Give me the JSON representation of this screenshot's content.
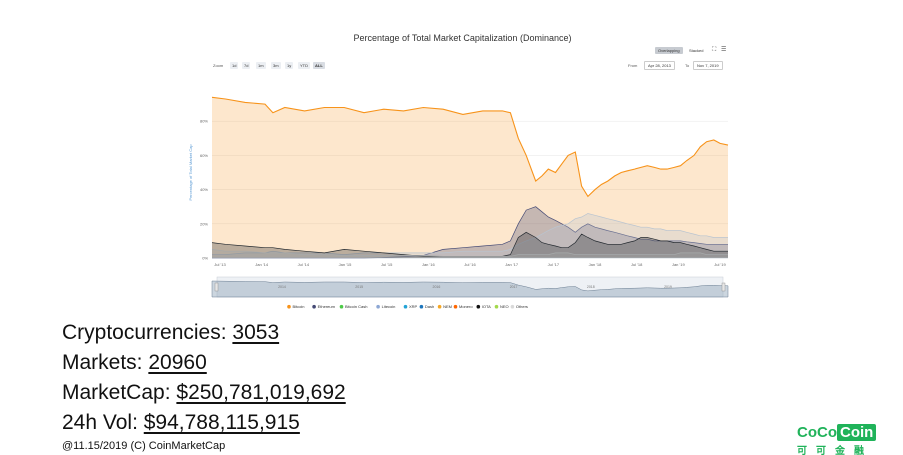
{
  "chart_data": {
    "type": "area",
    "title": "Percentage of Total Market Capitalization (Dominance)",
    "ylabel": "Percentage of Total Market Cap",
    "ylim": [
      0,
      100
    ],
    "y_ticks": [
      "0%",
      "20%",
      "40%",
      "60%",
      "80%"
    ],
    "x_ticks": [
      "Jul '13",
      "Jan '14",
      "Jul '14",
      "Jan '15",
      "Jul '15",
      "Jan '16",
      "Jul '16",
      "Jan '17",
      "Jul '17",
      "Jan '18",
      "Jul '18",
      "Jan '19",
      "Jul '19"
    ],
    "navigator_ticks": [
      "2014",
      "2015",
      "2016",
      "2017",
      "2018",
      "2019"
    ],
    "legend_position": "bottom",
    "controls": {
      "zoom_label": "Zoom",
      "zoom_buttons": [
        "1d",
        "7d",
        "1m",
        "3m",
        "1y",
        "YTD",
        "ALL"
      ],
      "from_label": "From",
      "from_date": "Apr 28, 2013",
      "to_label": "To",
      "to_date": "Nov 7, 2019",
      "overlapping_label": "Overlapping",
      "stacked_label": "Stacked"
    },
    "x": [
      2013.33,
      2013.5,
      2013.75,
      2014.0,
      2014.1,
      2014.25,
      2014.5,
      2014.75,
      2015.0,
      2015.25,
      2015.5,
      2015.75,
      2016.0,
      2016.25,
      2016.5,
      2016.75,
      2017.0,
      2017.1,
      2017.2,
      2017.3,
      2017.42,
      2017.5,
      2017.58,
      2017.67,
      2017.75,
      2017.83,
      2017.92,
      2018.0,
      2018.08,
      2018.17,
      2018.25,
      2018.33,
      2018.42,
      2018.5,
      2018.58,
      2018.67,
      2018.75,
      2018.83,
      2018.92,
      2019.0,
      2019.08,
      2019.17,
      2019.25,
      2019.33,
      2019.42,
      2019.5,
      2019.58,
      2019.67,
      2019.75,
      2019.85
    ],
    "series": [
      {
        "name": "Bitcoin",
        "color": "#f7931a",
        "values": [
          94,
          93,
          91,
          90,
          85,
          88,
          86,
          88,
          88,
          85,
          87,
          86,
          88,
          87,
          84,
          86,
          86,
          85,
          70,
          60,
          45,
          48,
          52,
          50,
          55,
          60,
          62,
          42,
          36,
          40,
          43,
          45,
          48,
          50,
          51,
          52,
          53,
          54,
          53,
          52,
          52,
          53,
          54,
          57,
          60,
          65,
          68,
          69,
          67,
          66
        ]
      },
      {
        "name": "Ethereum",
        "color": "#454a75",
        "values": [
          0,
          0,
          0,
          0,
          0,
          0,
          0,
          0,
          0,
          0,
          0.3,
          0.8,
          1.5,
          5,
          6,
          7,
          8,
          10,
          20,
          28,
          30,
          27,
          24,
          22,
          20,
          18,
          15,
          18,
          20,
          18,
          17,
          16,
          15,
          14,
          13,
          12,
          11,
          11,
          10,
          10,
          10,
          10,
          10,
          9.5,
          9,
          8.5,
          8,
          8,
          8,
          8
        ]
      },
      {
        "name": "Others",
        "color": "#b9c4d0",
        "values": [
          2,
          2,
          3,
          3,
          4,
          3,
          3,
          3,
          2,
          3,
          3,
          3,
          3,
          3,
          4,
          4,
          4,
          5,
          8,
          10,
          12,
          14,
          16,
          18,
          19,
          20,
          23,
          24,
          26,
          25,
          24,
          23,
          22,
          21,
          20,
          19,
          18,
          18,
          17,
          17,
          16,
          16,
          16,
          15,
          14,
          13,
          13,
          12,
          12,
          12
        ]
      },
      {
        "name": "XRP",
        "color": "#23292f",
        "values": [
          9,
          8,
          7,
          6,
          6,
          5,
          4,
          3,
          5,
          4,
          3,
          2,
          1,
          1,
          1,
          1,
          1,
          2,
          12,
          15,
          12,
          9,
          8,
          7,
          6,
          6,
          9,
          14,
          12,
          10,
          9,
          8,
          8,
          8,
          9,
          10,
          12,
          12,
          11,
          10,
          10,
          9,
          9,
          8,
          7,
          6,
          5,
          4,
          4,
          4
        ]
      },
      {
        "name": "Litecoin",
        "color": "#a6a9aa",
        "values": [
          5,
          4,
          4,
          3,
          3,
          3,
          2,
          2,
          1.5,
          1.5,
          1.5,
          1.5,
          1.5,
          1,
          1,
          1,
          1,
          1,
          2,
          2,
          2,
          2,
          2,
          3,
          3,
          3,
          2,
          2,
          2,
          2,
          2,
          2,
          2,
          2,
          2,
          2,
          2,
          2,
          2,
          2,
          2,
          2,
          3,
          3,
          3,
          3,
          2,
          2,
          2,
          2
        ]
      }
    ],
    "legend": [
      {
        "name": "Bitcoin",
        "color": "#f7931a"
      },
      {
        "name": "Ethereum",
        "color": "#454a75"
      },
      {
        "name": "Bitcoin Cash",
        "color": "#4cca47"
      },
      {
        "name": "Litecoin",
        "color": "#8da7d4"
      },
      {
        "name": "XRP",
        "color": "#23a3d6"
      },
      {
        "name": "Dash",
        "color": "#1c75bc"
      },
      {
        "name": "NEM",
        "color": "#f5a623"
      },
      {
        "name": "Monero",
        "color": "#ff6600"
      },
      {
        "name": "IOTA",
        "color": "#111111"
      },
      {
        "name": "NEO",
        "color": "#a3d94b"
      },
      {
        "name": "Others",
        "color": "#d9d9d9"
      }
    ]
  },
  "stats": {
    "cryptocurrencies_label": "Cryptocurrencies:",
    "cryptocurrencies_value": "3053",
    "markets_label": "Markets:",
    "markets_value": "20960",
    "marketcap_label": "MarketCap:",
    "marketcap_value": "$250,781,019,692",
    "vol_label": "24h Vol:",
    "vol_value": "$94,788,115,915"
  },
  "footer": "@11.15/2019 (C) CoinMarketCap",
  "logo": {
    "text_a": "CoCo",
    "text_b": "Coin",
    "text_cn": "可可金融",
    "color": "#20b35a"
  }
}
